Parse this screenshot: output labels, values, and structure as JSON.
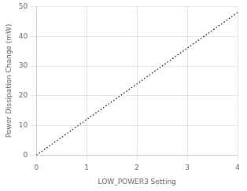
{
  "chart_data": {
    "type": "line",
    "x": [
      0,
      4
    ],
    "values": [
      0,
      48
    ],
    "xlabel": "LOW_POWER3 Setting",
    "ylabel": "Power Dissipation Change (mW)",
    "xlim": [
      0,
      4
    ],
    "ylim": [
      0,
      50
    ],
    "xticks": [
      0,
      1,
      2,
      3,
      4
    ],
    "yticks": [
      0,
      10,
      20,
      30,
      40,
      50
    ],
    "grid": true,
    "color": "#000000",
    "line_style": "dotted"
  }
}
